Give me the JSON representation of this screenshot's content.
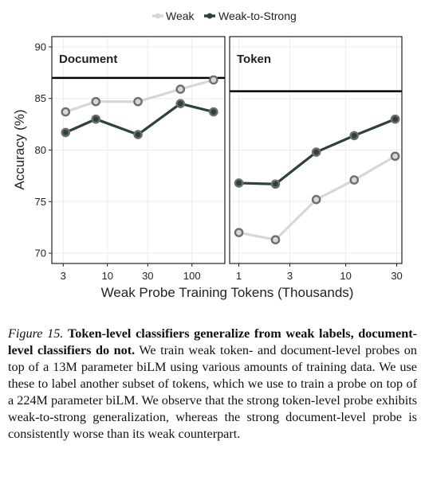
{
  "chart_data": [
    {
      "type": "line",
      "panel_title": "Document",
      "x_scale": "log",
      "x": [
        3.2,
        7.3,
        23,
        73,
        180
      ],
      "xticks": [
        3,
        10,
        30,
        100
      ],
      "xtick_labels": [
        "3",
        "10",
        "30",
        "100"
      ],
      "ylim": [
        69,
        91
      ],
      "yticks": [
        70,
        75,
        80,
        85,
        90
      ],
      "ytick_labels": [
        "70",
        "75",
        "80",
        "85",
        "90"
      ],
      "hline": 87.0,
      "grid": true,
      "series": [
        {
          "name": "Weak",
          "color": "#d8d8d3",
          "values": [
            83.7,
            84.7,
            84.7,
            85.9,
            86.8
          ]
        },
        {
          "name": "Weak-to-Strong",
          "color": "#2d4336",
          "values": [
            81.7,
            83.0,
            81.5,
            84.5,
            83.7
          ]
        }
      ]
    },
    {
      "type": "line",
      "panel_title": "Token",
      "x_scale": "log",
      "x": [
        1,
        2.2,
        5.3,
        12,
        29
      ],
      "xticks": [
        1,
        3,
        10,
        30
      ],
      "xtick_labels": [
        "1",
        "3",
        "10",
        "30"
      ],
      "ylim": [
        69,
        91
      ],
      "hline": 85.7,
      "grid": true,
      "series": [
        {
          "name": "Weak",
          "color": "#d8d8d3",
          "values": [
            72.0,
            71.3,
            75.2,
            77.1,
            79.4
          ]
        },
        {
          "name": "Weak-to-Strong",
          "color": "#2d4336",
          "values": [
            76.8,
            76.7,
            79.8,
            81.4,
            83.0
          ]
        }
      ]
    }
  ],
  "shared": {
    "ylabel": "Accuracy (%)",
    "xlabel": "Weak Probe Training Tokens (Thousands)",
    "legend": [
      "Weak",
      "Weak-to-Strong"
    ],
    "legend_position": "top-center"
  },
  "caption": {
    "label": "Figure 15.",
    "bold": "Token-level classifiers generalize from weak labels, document-level classifiers do not.",
    "text": "We train weak token- and document-level probes on top of a 13M parameter biLM using various amounts of training data. We use these to label another subset of tokens, which we use to train a probe on top of a 224M parameter biLM. We observe that the strong token-level probe exhibits weak-to-strong generalization, whereas the strong document-level probe is consistently worse than its weak counterpart."
  }
}
